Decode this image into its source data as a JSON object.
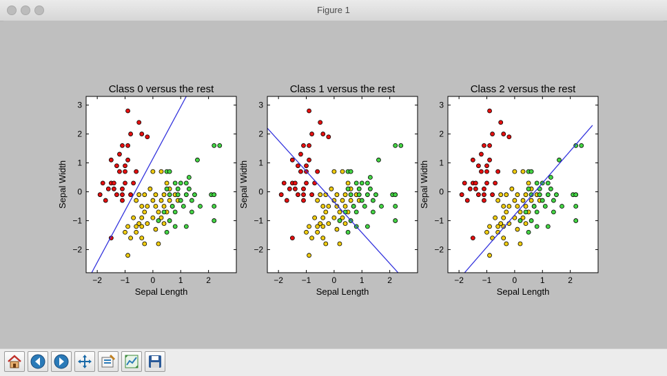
{
  "window": {
    "title": "Figure 1"
  },
  "toolbar": {
    "buttons": [
      {
        "name": "home-button",
        "icon": "home-icon"
      },
      {
        "name": "back-button",
        "icon": "back-arrow-icon"
      },
      {
        "name": "forward-button",
        "icon": "forward-arrow-icon"
      },
      {
        "name": "pan-button",
        "icon": "pan-move-icon"
      },
      {
        "name": "zoom-button",
        "icon": "zoom-rect-icon"
      },
      {
        "name": "configure-subplots-button",
        "icon": "subplots-icon"
      },
      {
        "name": "save-button",
        "icon": "save-icon"
      }
    ]
  },
  "chart_data": {
    "type": "scatter",
    "xlabel": "Sepal Length",
    "ylabel": "Sepal Width",
    "xlim": [
      -2.4,
      3.0
    ],
    "ylim": [
      -2.8,
      3.3
    ],
    "xticks": [
      -2,
      -1,
      0,
      1,
      2
    ],
    "yticks": [
      -2,
      -1,
      0,
      1,
      2,
      3
    ],
    "colors": {
      "class0": "#e41010",
      "class1": "#f0cc10",
      "class2": "#44d444",
      "line": "#3333dd"
    },
    "points": {
      "class0": [
        [
          -0.9,
          2.8
        ],
        [
          -0.5,
          2.4
        ],
        [
          -0.8,
          2.0
        ],
        [
          -0.4,
          2.0
        ],
        [
          -0.2,
          1.9
        ],
        [
          -1.1,
          1.6
        ],
        [
          -0.9,
          1.6
        ],
        [
          -1.2,
          1.3
        ],
        [
          -0.9,
          1.1
        ],
        [
          -1.5,
          1.1
        ],
        [
          -1.3,
          0.9
        ],
        [
          -1.0,
          0.9
        ],
        [
          -1.2,
          0.7
        ],
        [
          -1.0,
          0.7
        ],
        [
          -0.6,
          0.7
        ],
        [
          -1.8,
          0.3
        ],
        [
          -1.5,
          0.3
        ],
        [
          -1.4,
          0.3
        ],
        [
          -1.0,
          0.3
        ],
        [
          -0.7,
          0.3
        ],
        [
          -1.6,
          0.1
        ],
        [
          -1.4,
          0.1
        ],
        [
          -1.1,
          0.1
        ],
        [
          -1.9,
          -0.1
        ],
        [
          -1.3,
          -0.1
        ],
        [
          -1.1,
          -0.1
        ],
        [
          -0.8,
          -0.1
        ],
        [
          -1.7,
          -0.3
        ],
        [
          -1.1,
          -0.3
        ],
        [
          -1.5,
          -1.6
        ]
      ],
      "class1": [
        [
          0.0,
          0.7
        ],
        [
          0.3,
          0.7
        ],
        [
          0.5,
          0.3
        ],
        [
          -0.1,
          0.1
        ],
        [
          0.6,
          0.1
        ],
        [
          -0.5,
          -0.1
        ],
        [
          -0.3,
          -0.1
        ],
        [
          0.1,
          -0.1
        ],
        [
          0.4,
          -0.1
        ],
        [
          0.8,
          -0.1
        ],
        [
          -0.6,
          -0.3
        ],
        [
          0.0,
          -0.3
        ],
        [
          0.3,
          -0.3
        ],
        [
          0.6,
          -0.3
        ],
        [
          0.9,
          -0.3
        ],
        [
          -0.4,
          -0.5
        ],
        [
          -0.2,
          -0.5
        ],
        [
          0.1,
          -0.5
        ],
        [
          0.4,
          -0.5
        ],
        [
          0.7,
          -0.5
        ],
        [
          -0.3,
          -0.7
        ],
        [
          0.2,
          -0.7
        ],
        [
          0.5,
          -0.7
        ],
        [
          -0.7,
          -0.9
        ],
        [
          -0.4,
          -0.9
        ],
        [
          0.0,
          -0.9
        ],
        [
          0.3,
          -0.9
        ],
        [
          -0.5,
          -1.1
        ],
        [
          -0.2,
          -1.1
        ],
        [
          0.4,
          -1.1
        ],
        [
          -0.9,
          -1.2
        ],
        [
          -0.6,
          -1.2
        ],
        [
          -0.4,
          -1.2
        ],
        [
          0.1,
          -1.3
        ],
        [
          -1.0,
          -1.4
        ],
        [
          -0.6,
          -1.4
        ],
        [
          -0.4,
          -1.6
        ],
        [
          -0.8,
          -1.6
        ],
        [
          -0.3,
          -1.8
        ],
        [
          0.2,
          -1.8
        ],
        [
          -0.9,
          -2.2
        ]
      ],
      "class2": [
        [
          2.2,
          1.6
        ],
        [
          2.4,
          1.6
        ],
        [
          1.6,
          1.1
        ],
        [
          0.5,
          0.7
        ],
        [
          0.6,
          0.7
        ],
        [
          1.3,
          0.5
        ],
        [
          0.8,
          0.3
        ],
        [
          1.0,
          0.3
        ],
        [
          1.2,
          0.3
        ],
        [
          0.5,
          0.1
        ],
        [
          0.9,
          0.1
        ],
        [
          1.3,
          0.1
        ],
        [
          0.6,
          -0.1
        ],
        [
          0.9,
          -0.1
        ],
        [
          1.2,
          -0.1
        ],
        [
          1.5,
          -0.1
        ],
        [
          2.1,
          -0.1
        ],
        [
          2.2,
          -0.1
        ],
        [
          1.0,
          -0.3
        ],
        [
          1.4,
          -0.3
        ],
        [
          0.7,
          -0.5
        ],
        [
          1.1,
          -0.5
        ],
        [
          1.7,
          -0.5
        ],
        [
          2.2,
          -0.5
        ],
        [
          0.4,
          -0.7
        ],
        [
          0.8,
          -0.7
        ],
        [
          1.4,
          -0.7
        ],
        [
          0.2,
          -1.0
        ],
        [
          0.6,
          -1.0
        ],
        [
          2.2,
          -1.0
        ],
        [
          0.8,
          -1.2
        ],
        [
          1.2,
          -1.2
        ],
        [
          0.5,
          -1.4
        ]
      ]
    },
    "panels": [
      {
        "title": "Class 0 versus the rest",
        "line": [
          [
            -2.2,
            -2.8
          ],
          [
            1.2,
            3.3
          ]
        ]
      },
      {
        "title": "Class 1 versus the rest",
        "line": [
          [
            -2.4,
            2.2
          ],
          [
            2.3,
            -2.8
          ]
        ]
      },
      {
        "title": "Class 2 versus the rest",
        "line": [
          [
            -1.8,
            -2.8
          ],
          [
            2.8,
            2.3
          ]
        ]
      }
    ]
  }
}
